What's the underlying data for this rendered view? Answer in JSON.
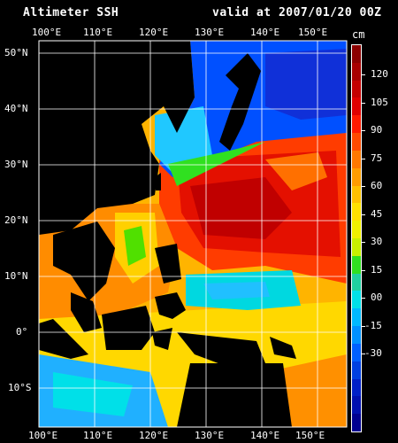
{
  "header": {
    "title": "Altimeter SSH",
    "valid": "valid at 2007/01/20 00Z"
  },
  "map": {
    "lon_labels": [
      "100°E",
      "110°E",
      "120°E",
      "130°E",
      "140°E",
      "150°E"
    ],
    "lat_labels": [
      "50°N",
      "40°N",
      "30°N",
      "20°N",
      "10°N",
      "0°",
      "10°S"
    ],
    "background_color": "#000000",
    "land_color": "#000000",
    "grid_color": "#ffffff"
  },
  "colorbar": {
    "unit": "cm",
    "labels": [
      "120",
      "105",
      "90",
      "75",
      "60",
      "45",
      "30",
      "15",
      "00",
      "-15",
      "-30"
    ],
    "colors": [
      "#8b0000",
      "#a80000",
      "#c40000",
      "#e00000",
      "#ff1a00",
      "#ff4a00",
      "#ff7800",
      "#ff9c00",
      "#ffc000",
      "#ffe000",
      "#f0f000",
      "#c8f000",
      "#30e020",
      "#20d0a0",
      "#00e0e8",
      "#00b8ff",
      "#0090ff",
      "#0060ff",
      "#0040e0",
      "#0020c8",
      "#0010b0",
      "#000090"
    ]
  }
}
